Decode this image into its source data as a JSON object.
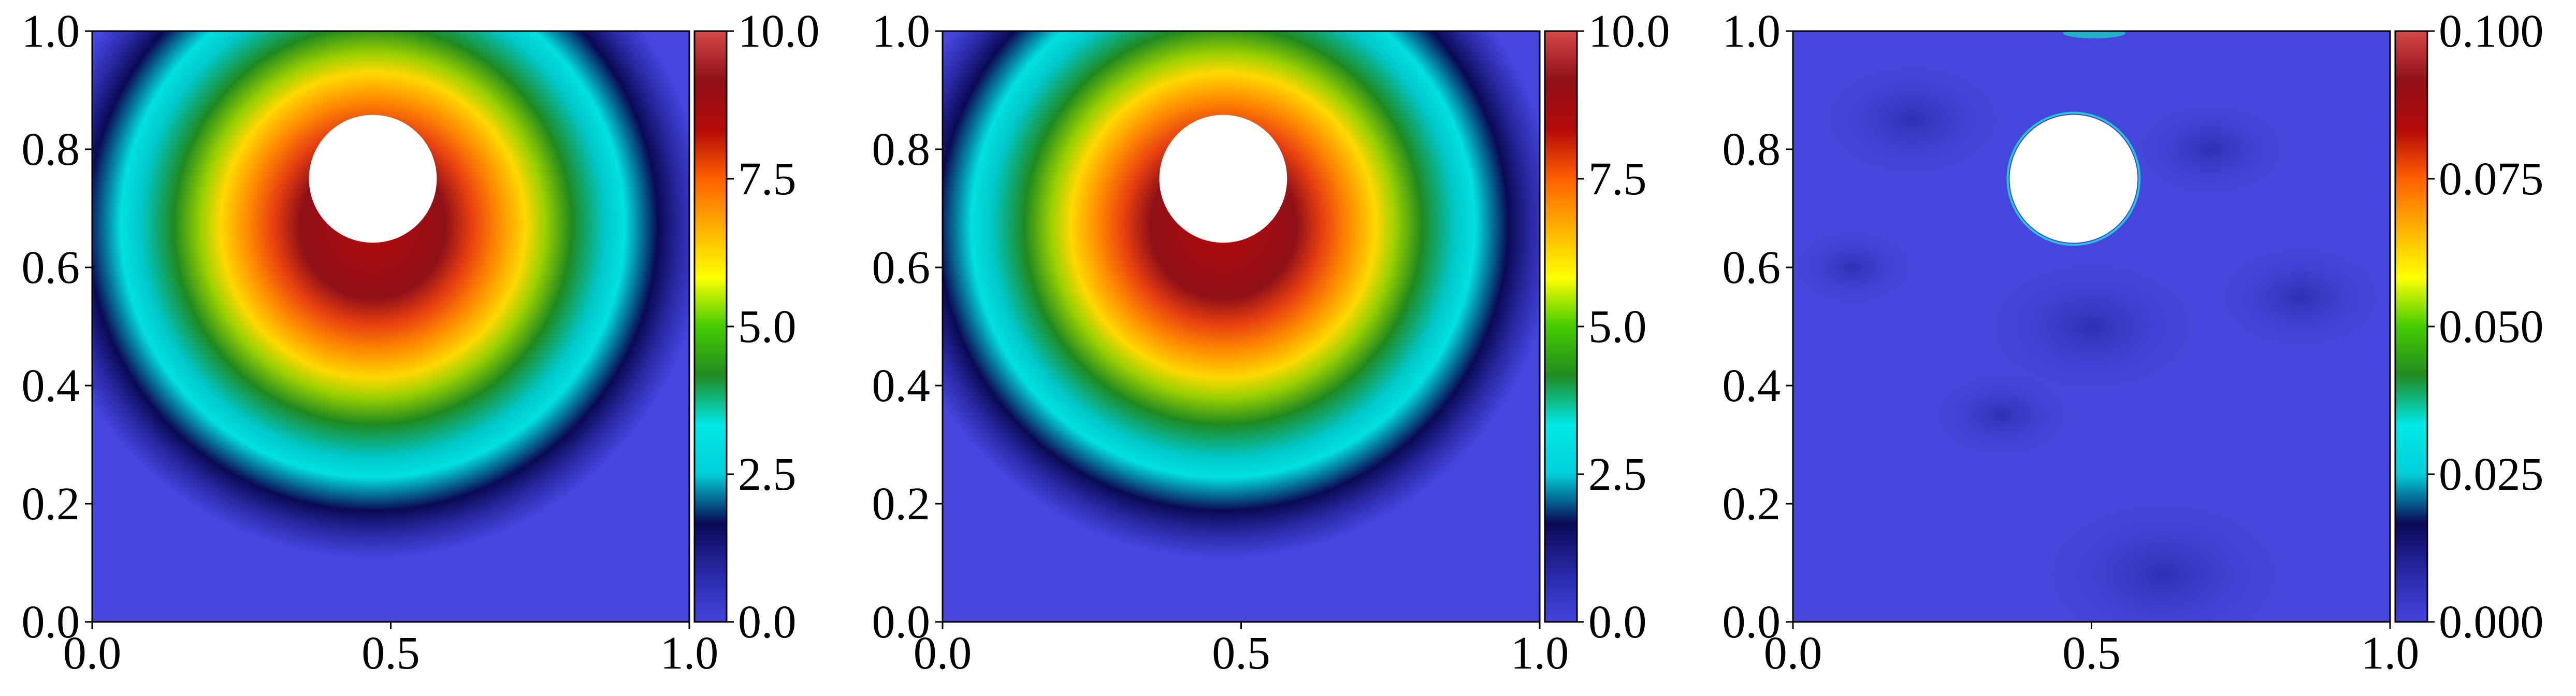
{
  "chart_data": [
    {
      "type": "heatmap",
      "title": "",
      "xlabel": "",
      "ylabel": "",
      "xlim": [
        0.0,
        1.0
      ],
      "ylim": [
        0.0,
        1.0
      ],
      "x_ticks": [
        "0.0",
        "0.5",
        "1.0"
      ],
      "y_ticks": [
        "0.0",
        "0.2",
        "0.4",
        "0.6",
        "0.8",
        "1.0"
      ],
      "colorbar": {
        "range": [
          0.0,
          10.0
        ],
        "ticks": [
          "0.0",
          "2.5",
          "5.0",
          "7.5",
          "10.0"
        ]
      },
      "field": {
        "peak_value": 10.0,
        "source_center": [
          0.47,
          0.75
        ],
        "hole_radius": 0.1,
        "description_of_shape": "radial decay from hole, skewed downward"
      }
    },
    {
      "type": "heatmap",
      "title": "",
      "xlabel": "",
      "ylabel": "",
      "xlim": [
        0.0,
        1.0
      ],
      "ylim": [
        0.0,
        1.0
      ],
      "x_ticks": [
        "0.0",
        "0.5",
        "1.0"
      ],
      "y_ticks": [
        "0.0",
        "0.2",
        "0.4",
        "0.6",
        "0.8",
        "1.0"
      ],
      "colorbar": {
        "range": [
          0.0,
          10.0
        ],
        "ticks": [
          "0.0",
          "2.5",
          "5.0",
          "7.5",
          "10.0"
        ]
      },
      "field": {
        "peak_value": 10.0,
        "source_center": [
          0.47,
          0.75
        ],
        "hole_radius": 0.1
      }
    },
    {
      "type": "heatmap",
      "title": "",
      "xlabel": "",
      "ylabel": "",
      "xlim": [
        0.0,
        1.0
      ],
      "ylim": [
        0.0,
        1.0
      ],
      "x_ticks": [
        "0.0",
        "0.5",
        "1.0"
      ],
      "y_ticks": [
        "0.0",
        "0.2",
        "0.4",
        "0.6",
        "0.8",
        "1.0"
      ],
      "colorbar": {
        "range": [
          0.0,
          0.1
        ],
        "ticks": [
          "0.000",
          "0.025",
          "0.050",
          "0.075",
          "0.100"
        ]
      },
      "field": {
        "typical_value": 0.005,
        "max_value": 0.03,
        "source_center": [
          0.47,
          0.75
        ],
        "hole_radius": 0.1
      }
    }
  ],
  "colormap_stops": [
    "#4444dd",
    "#2828a8",
    "#0a0a55",
    "#00cfd8",
    "#00e8e8",
    "#228b22",
    "#44cc00",
    "#ffff00",
    "#ffb000",
    "#ff6000",
    "#b40a0a",
    "#901018",
    "#d44848"
  ]
}
